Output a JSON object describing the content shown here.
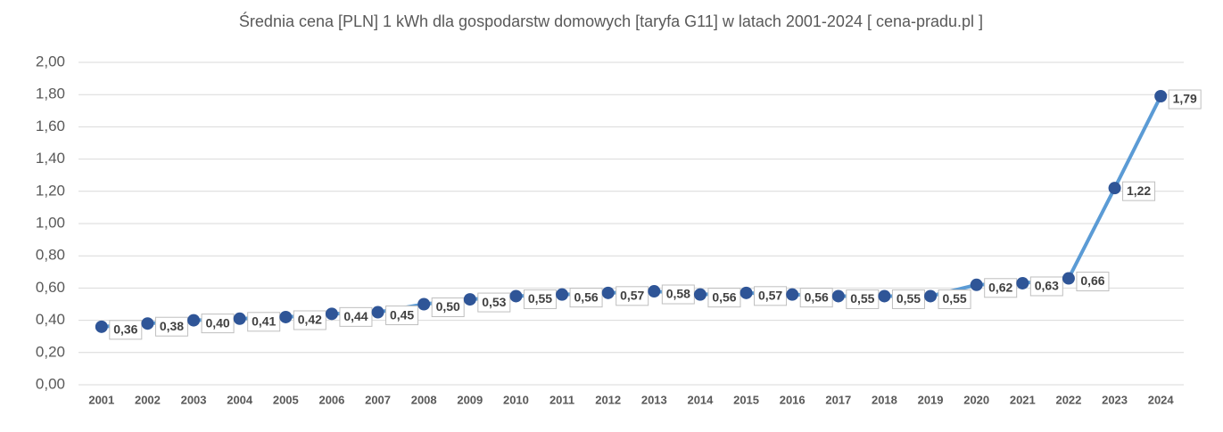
{
  "chart_data": {
    "type": "line",
    "title": "Średnia cena [PLN] 1 kWh dla gospodarstw domowych [taryfa G11] w latach 2001-2024 [ cena-pradu.pl ]",
    "categories": [
      "2001",
      "2002",
      "2003",
      "2004",
      "2005",
      "2006",
      "2007",
      "2008",
      "2009",
      "2010",
      "2011",
      "2012",
      "2013",
      "2014",
      "2015",
      "2016",
      "2017",
      "2018",
      "2019",
      "2020",
      "2021",
      "2022",
      "2023",
      "2024"
    ],
    "series": [
      {
        "color": "#5b9bd5",
        "marker_color": "#2f5597",
        "values": [
          0.36,
          0.38,
          0.4,
          0.41,
          0.42,
          0.44,
          0.45,
          0.5,
          0.53,
          0.55,
          0.56,
          0.57,
          0.58,
          0.56,
          0.57,
          0.56,
          0.55,
          0.55,
          0.55,
          0.62,
          0.63,
          0.66,
          1.22,
          1.79
        ],
        "value_labels": [
          "0,36",
          "0,38",
          "0,40",
          "0,41",
          "0,42",
          "0,44",
          "0,45",
          "0,50",
          "0,53",
          "0,55",
          "0,56",
          "0,57",
          "0,58",
          "0,56",
          "0,57",
          "0,56",
          "0,55",
          "0,55",
          "0,55",
          "0,62",
          "0,63",
          "0,66",
          "1,22",
          "1,79"
        ]
      }
    ],
    "ylim": [
      0,
      2
    ],
    "yticks": [
      {
        "value": 0,
        "label": "0,00"
      },
      {
        "value": 0.2,
        "label": "0,20"
      },
      {
        "value": 0.4,
        "label": "0,40"
      },
      {
        "value": 0.6,
        "label": "0,60"
      },
      {
        "value": 0.8,
        "label": "0,80"
      },
      {
        "value": 1,
        "label": "1,00"
      },
      {
        "value": 1.2,
        "label": "1,20"
      },
      {
        "value": 1.4,
        "label": "1,40"
      },
      {
        "value": 1.6,
        "label": "1,60"
      },
      {
        "value": 1.8,
        "label": "1,80"
      },
      {
        "value": 2,
        "label": "2,00"
      }
    ],
    "grid": true
  }
}
